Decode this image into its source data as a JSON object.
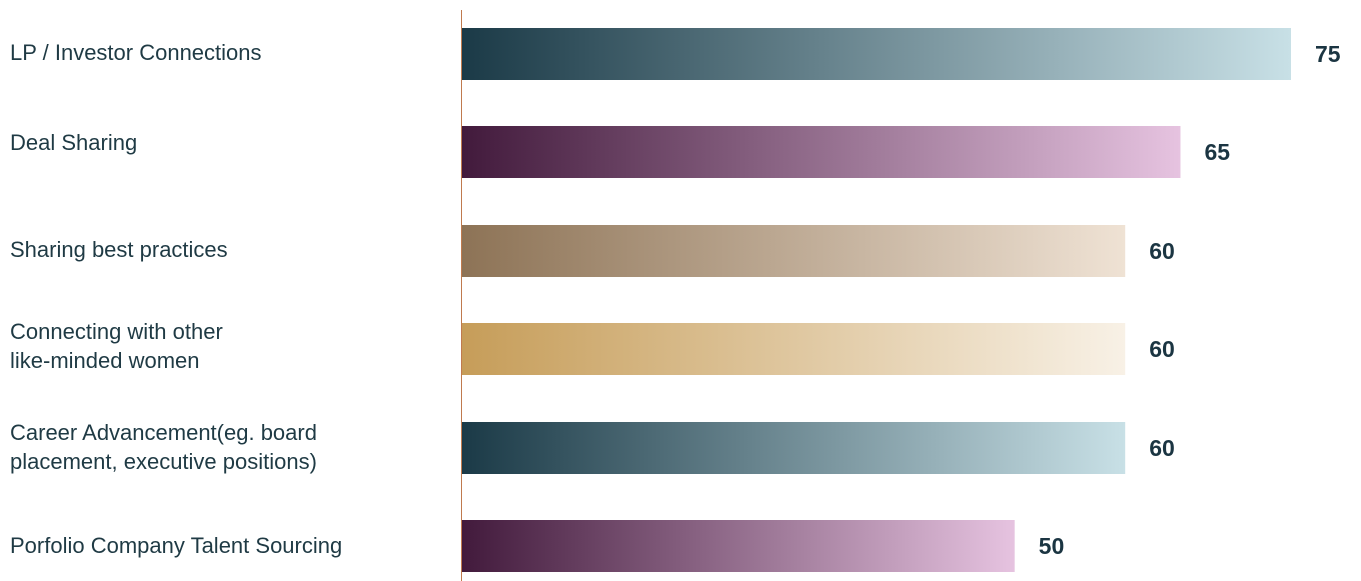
{
  "chart_data": {
    "type": "bar",
    "orientation": "horizontal",
    "categories": [
      "LP / Investor Connections",
      "Deal Sharing",
      "Sharing best practices",
      "Connecting with other\nlike-minded women",
      "Career Advancement(eg. board\nplacement, executive positions)",
      "Porfolio Company Talent Sourcing"
    ],
    "values": [
      75,
      65,
      60,
      60,
      60,
      50
    ],
    "value_labels": [
      "75",
      "65",
      "60",
      "60",
      "60",
      "50"
    ],
    "title": "",
    "xlabel": "",
    "ylabel": "",
    "xlim": [
      0,
      75
    ],
    "grid": false,
    "legend": "none",
    "colors": [
      {
        "start": "#1b3a47",
        "end": "#c8e0e6"
      },
      {
        "start": "#421a3c",
        "end": "#e6c3e0"
      },
      {
        "start": "#8d7356",
        "end": "#efe2d4"
      },
      {
        "start": "#c69d59",
        "end": "#f8f1e6"
      },
      {
        "start": "#1b3a47",
        "end": "#c8e0e6"
      },
      {
        "start": "#421a3c",
        "end": "#e6c3e0"
      }
    ],
    "axis_color": "#c07a4e",
    "value_label_color": "#1b3542"
  }
}
